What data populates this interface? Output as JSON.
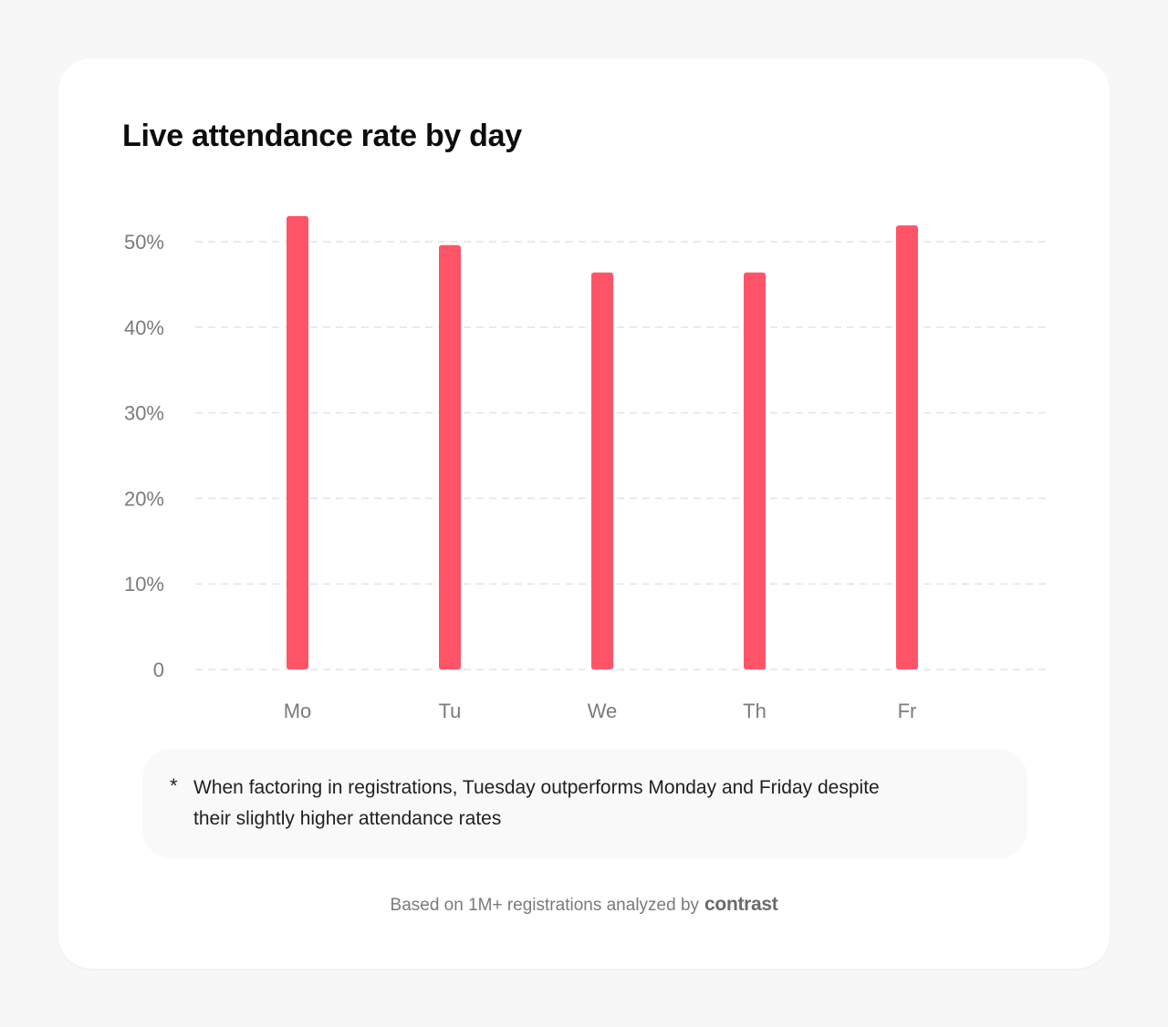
{
  "title": "Live attendance rate by day",
  "chart_data": {
    "type": "bar",
    "categories": [
      "Mo",
      "Tu",
      "We",
      "Th",
      "Fr"
    ],
    "values": [
      53,
      49.6,
      46.4,
      46.4,
      51.9
    ],
    "yticks": [
      "0",
      "10%",
      "20%",
      "30%",
      "40%",
      "50%"
    ],
    "ytick_values": [
      0,
      10,
      20,
      30,
      40,
      50
    ],
    "ylim": [
      0,
      50
    ],
    "grid": true,
    "bar_color": "#ff5468"
  },
  "note": {
    "marker": "*",
    "text": "When factoring in registrations, Tuesday outperforms Monday and Friday despite their slightly higher attendance rates"
  },
  "footer": {
    "text": "Based on 1M+ registrations analyzed by",
    "brand": "contrast"
  }
}
